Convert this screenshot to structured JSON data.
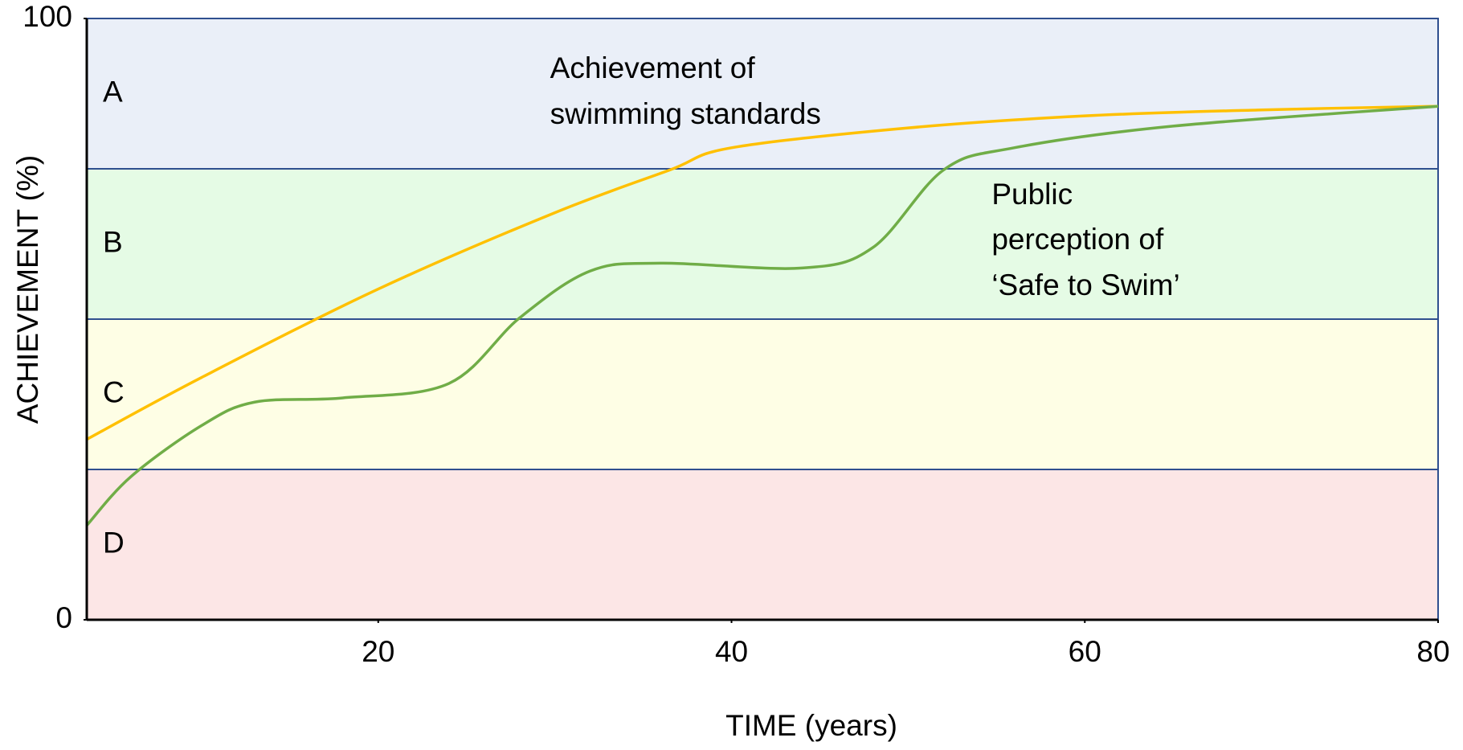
{
  "chart_data": {
    "type": "line",
    "xlabel": "TIME (years)",
    "ylabel": "ACHIEVEMENT (%)",
    "xlim": [
      3.5,
      80
    ],
    "xticks": [
      20,
      40,
      60,
      80
    ],
    "ylim": [
      0,
      100
    ],
    "yticks": [
      0,
      100
    ],
    "grid": false,
    "bands": [
      {
        "label": "A",
        "from": 75,
        "to": 100,
        "color": "#eaeff8",
        "label_color": "#4472c4"
      },
      {
        "label": "B",
        "from": 50,
        "to": 75,
        "color": "#e5fbe5",
        "label_color": "#00b050"
      },
      {
        "label": "C",
        "from": 25,
        "to": 50,
        "color": "#fefee5",
        "label_color": "#000000"
      },
      {
        "label": "D",
        "from": 0,
        "to": 25,
        "color": "#fce6e6",
        "label_color": "#ff0000"
      }
    ],
    "series": [
      {
        "color": "#ffc000",
        "x": [
          3.5,
          10,
          20,
          30,
          36.5,
          40,
          50,
          60,
          70,
          80
        ],
        "values": [
          30,
          40.3,
          55,
          67.7,
          74.8,
          78.5,
          81.8,
          83.8,
          84.8,
          85.4
        ]
      },
      {
        "color": "#70ad47",
        "x": [
          3.5,
          6,
          10,
          13,
          18,
          24,
          28,
          32,
          36,
          44,
          48,
          52,
          56,
          65,
          80
        ],
        "values": [
          15.7,
          23.8,
          32.3,
          36.2,
          36.9,
          39.3,
          50.2,
          58,
          59.3,
          58.5,
          61.9,
          74.8,
          78.5,
          82.1,
          85.4
        ]
      }
    ],
    "annotations": [
      {
        "lines": [
          "Achievement of",
          "swimming standards"
        ],
        "x": 30
      },
      {
        "lines": [
          "Public",
          "perception of",
          "‘Safe to Swim’"
        ],
        "x": 55
      }
    ]
  }
}
